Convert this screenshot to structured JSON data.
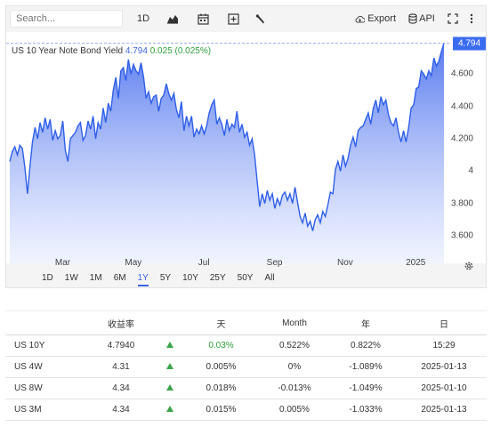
{
  "search": {
    "placeholder": "Search..."
  },
  "toolbar": {
    "interval_label": "1D",
    "export_label": "Export",
    "api_label": "API",
    "icons": [
      "area-chart-icon",
      "calendar-icon",
      "plus-box-icon",
      "wrench-icon",
      "cloud-download-icon",
      "database-icon",
      "fullscreen-icon",
      "more-vertical-icon"
    ]
  },
  "legend": {
    "name": "US 10 Year Note Bond Yield",
    "value": "4.794",
    "change": "0.025 (0.025%)"
  },
  "price_tag": "4.794",
  "colors": {
    "accent": "#3b6cf0",
    "up": "#2e9e3c",
    "area_top": "#5b7ff0",
    "area_bottom": "#e9eeff"
  },
  "ranges": [
    {
      "label": "1D",
      "active": false
    },
    {
      "label": "1W",
      "active": false
    },
    {
      "label": "1M",
      "active": false
    },
    {
      "label": "6M",
      "active": false
    },
    {
      "label": "1Y",
      "active": true
    },
    {
      "label": "5Y",
      "active": false
    },
    {
      "label": "10Y",
      "active": false
    },
    {
      "label": "25Y",
      "active": false
    },
    {
      "label": "50Y",
      "active": false
    },
    {
      "label": "All",
      "active": false
    }
  ],
  "chart_data": {
    "type": "area",
    "title": "US 10 Year Note Bond Yield",
    "xlabel": "",
    "ylabel": "",
    "x_tick_labels": [
      "Mar",
      "May",
      "Jul",
      "Sep",
      "Nov",
      "2025"
    ],
    "y_tick_labels": [
      "3.600",
      "3.800",
      "4",
      "4.200",
      "4.400",
      "4.600"
    ],
    "ylim": [
      3.43,
      4.86
    ],
    "grid": false,
    "series": [
      {
        "name": "US 10 Year Note Bond Yield",
        "values": [
          4.06,
          4.12,
          4.15,
          4.1,
          4.16,
          4.14,
          4.02,
          3.86,
          4.03,
          4.18,
          4.27,
          4.2,
          4.3,
          4.24,
          4.33,
          4.26,
          4.32,
          4.19,
          4.25,
          4.2,
          4.22,
          4.31,
          4.13,
          4.06,
          4.2,
          4.22,
          4.24,
          4.28,
          4.3,
          4.19,
          4.22,
          4.31,
          4.26,
          4.34,
          4.2,
          4.3,
          4.26,
          4.39,
          4.3,
          4.42,
          4.37,
          4.5,
          4.58,
          4.45,
          4.62,
          4.64,
          4.56,
          4.69,
          4.6,
          4.66,
          4.62,
          4.6,
          4.67,
          4.58,
          4.45,
          4.49,
          4.42,
          4.46,
          4.47,
          4.37,
          4.45,
          4.47,
          4.54,
          4.48,
          4.44,
          4.48,
          4.38,
          4.33,
          4.43,
          4.25,
          4.34,
          4.28,
          4.34,
          4.21,
          4.26,
          4.23,
          4.28,
          4.23,
          4.28,
          4.36,
          4.41,
          4.44,
          4.29,
          4.33,
          4.29,
          4.22,
          4.32,
          4.25,
          4.29,
          4.27,
          4.37,
          4.24,
          4.29,
          4.21,
          4.24,
          4.16,
          4.2,
          4.1,
          3.94,
          3.78,
          3.86,
          3.8,
          3.88,
          3.82,
          3.86,
          3.77,
          3.83,
          3.79,
          3.85,
          3.87,
          3.82,
          3.86,
          3.8,
          3.9,
          3.81,
          3.72,
          3.68,
          3.74,
          3.66,
          3.69,
          3.63,
          3.7,
          3.73,
          3.68,
          3.75,
          3.72,
          3.79,
          3.87,
          3.86,
          4.01,
          4.06,
          4.0,
          4.1,
          4.03,
          4.08,
          4.16,
          4.21,
          4.15,
          4.25,
          4.27,
          4.28,
          4.32,
          4.36,
          4.29,
          4.39,
          4.44,
          4.36,
          4.46,
          4.41,
          4.44,
          4.35,
          4.3,
          4.28,
          4.33,
          4.24,
          4.18,
          4.25,
          4.18,
          4.27,
          4.39,
          4.41,
          4.51,
          4.52,
          4.62,
          4.6,
          4.57,
          4.62,
          4.59,
          4.7,
          4.65,
          4.68,
          4.74,
          4.79
        ]
      }
    ]
  },
  "table": {
    "headers": [
      "",
      "收益率",
      "",
      "天",
      "Month",
      "年",
      "日"
    ],
    "rows": [
      {
        "name": "US 10Y",
        "yield": "4.7940",
        "day": "0.03%",
        "month": "0.522%",
        "year": "0.822%",
        "date": "15:29",
        "day_colored": true
      },
      {
        "name": "US 4W",
        "yield": "4.31",
        "day": "0.005%",
        "month": "0%",
        "year": "-1.089%",
        "date": "2025-01-13",
        "day_colored": false
      },
      {
        "name": "US 8W",
        "yield": "4.34",
        "day": "0.018%",
        "month": "-0.013%",
        "year": "-1.049%",
        "date": "2025-01-10",
        "day_colored": false
      },
      {
        "name": "US 3M",
        "yield": "4.34",
        "day": "0.015%",
        "month": "0.005%",
        "year": "-1.033%",
        "date": "2025-01-13",
        "day_colored": false
      }
    ]
  }
}
